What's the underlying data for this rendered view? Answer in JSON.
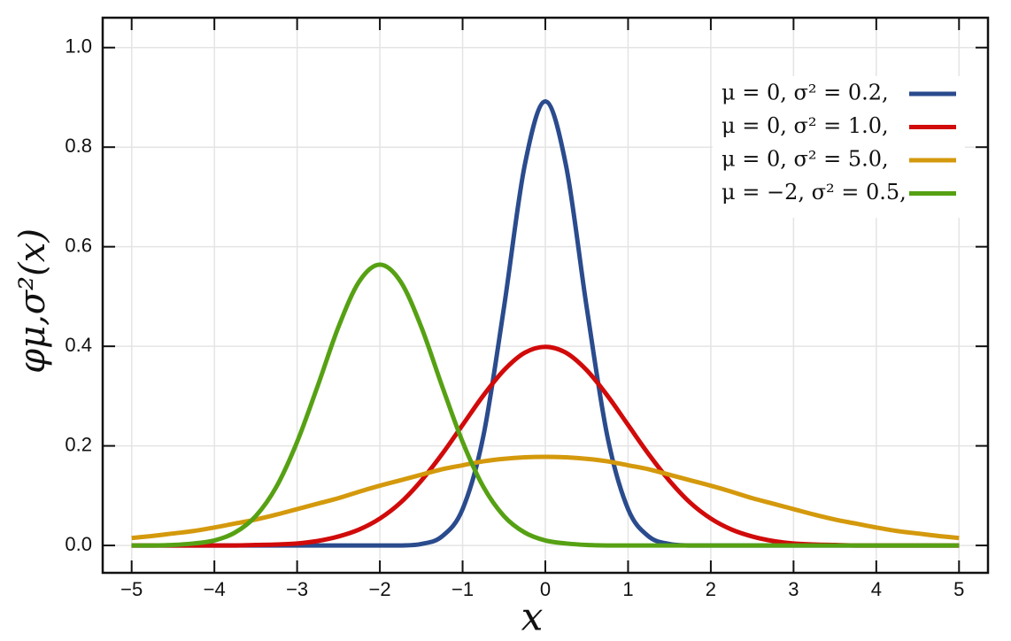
{
  "chart_data": {
    "type": "line",
    "xlabel": "x",
    "ylabel": "φμ,σ²(x)",
    "x": [
      -5,
      -4.75,
      -4.5,
      -4.25,
      -4,
      -3.75,
      -3.5,
      -3.25,
      -3,
      -2.75,
      -2.5,
      -2.25,
      -2,
      -1.75,
      -1.5,
      -1.25,
      -1,
      -0.75,
      -0.5,
      -0.25,
      0,
      0.25,
      0.5,
      0.75,
      1,
      1.25,
      1.5,
      1.75,
      2,
      2.25,
      2.5,
      2.75,
      3,
      3.25,
      3.5,
      3.75,
      4,
      4.25,
      4.5,
      4.75,
      5
    ],
    "series": [
      {
        "name": "μ = 0,   σ² = 0.2,",
        "color": "#2a4b8d",
        "values": [
          0,
          0,
          0,
          0,
          0,
          0,
          0,
          0,
          0,
          0,
          0,
          0,
          0,
          0,
          0.003,
          0.018,
          0.073,
          0.219,
          0.478,
          0.763,
          0.892,
          0.763,
          0.478,
          0.219,
          0.073,
          0.018,
          0.003,
          0,
          0,
          0,
          0,
          0,
          0,
          0,
          0,
          0,
          0,
          0,
          0,
          0,
          0
        ]
      },
      {
        "name": "μ = 0,   σ² = 1.0,",
        "color": "#d10a0a",
        "values": [
          0,
          0,
          0,
          0,
          0,
          0,
          0.001,
          0.002,
          0.004,
          0.009,
          0.018,
          0.032,
          0.054,
          0.086,
          0.13,
          0.183,
          0.242,
          0.301,
          0.352,
          0.387,
          0.399,
          0.387,
          0.352,
          0.301,
          0.242,
          0.183,
          0.13,
          0.086,
          0.054,
          0.032,
          0.018,
          0.009,
          0.004,
          0.002,
          0.001,
          0,
          0,
          0,
          0,
          0,
          0
        ]
      },
      {
        "name": "μ = 0,   σ² = 5.0,",
        "color": "#d4990c",
        "values": [
          0.015,
          0.019,
          0.024,
          0.029,
          0.036,
          0.044,
          0.052,
          0.062,
          0.073,
          0.084,
          0.095,
          0.108,
          0.12,
          0.131,
          0.142,
          0.153,
          0.161,
          0.169,
          0.174,
          0.177,
          0.178,
          0.177,
          0.174,
          0.169,
          0.161,
          0.153,
          0.142,
          0.131,
          0.12,
          0.108,
          0.095,
          0.084,
          0.073,
          0.062,
          0.052,
          0.044,
          0.036,
          0.029,
          0.024,
          0.019,
          0.015
        ]
      },
      {
        "name": "μ = −2, σ² = 0.5,",
        "color": "#56a113",
        "values": [
          0,
          0,
          0.001,
          0.004,
          0.01,
          0.026,
          0.059,
          0.118,
          0.208,
          0.321,
          0.439,
          0.53,
          0.564,
          0.53,
          0.439,
          0.321,
          0.208,
          0.118,
          0.059,
          0.026,
          0.01,
          0.004,
          0.001,
          0,
          0,
          0,
          0,
          0,
          0,
          0,
          0,
          0,
          0,
          0,
          0,
          0,
          0,
          0,
          0,
          0,
          0
        ]
      }
    ],
    "xlim": [
      -5.35,
      5.35
    ],
    "ylim": [
      -0.055,
      1.06
    ],
    "xticks": [
      {
        "value": -5,
        "label": "−5"
      },
      {
        "value": -4,
        "label": "−4"
      },
      {
        "value": -3,
        "label": "−3"
      },
      {
        "value": -2,
        "label": "−2"
      },
      {
        "value": -1,
        "label": "−1"
      },
      0,
      1,
      2,
      3,
      4,
      5
    ],
    "yticks": [
      {
        "value": 0,
        "label": "0.0"
      },
      {
        "value": 0.2,
        "label": "0.2"
      },
      {
        "value": 0.4,
        "label": "0.4"
      },
      {
        "value": 0.6,
        "label": "0.6"
      },
      {
        "value": 0.8,
        "label": "0.8"
      },
      {
        "value": 1,
        "label": "1.0"
      }
    ],
    "grid": true,
    "legend": "upper right"
  }
}
